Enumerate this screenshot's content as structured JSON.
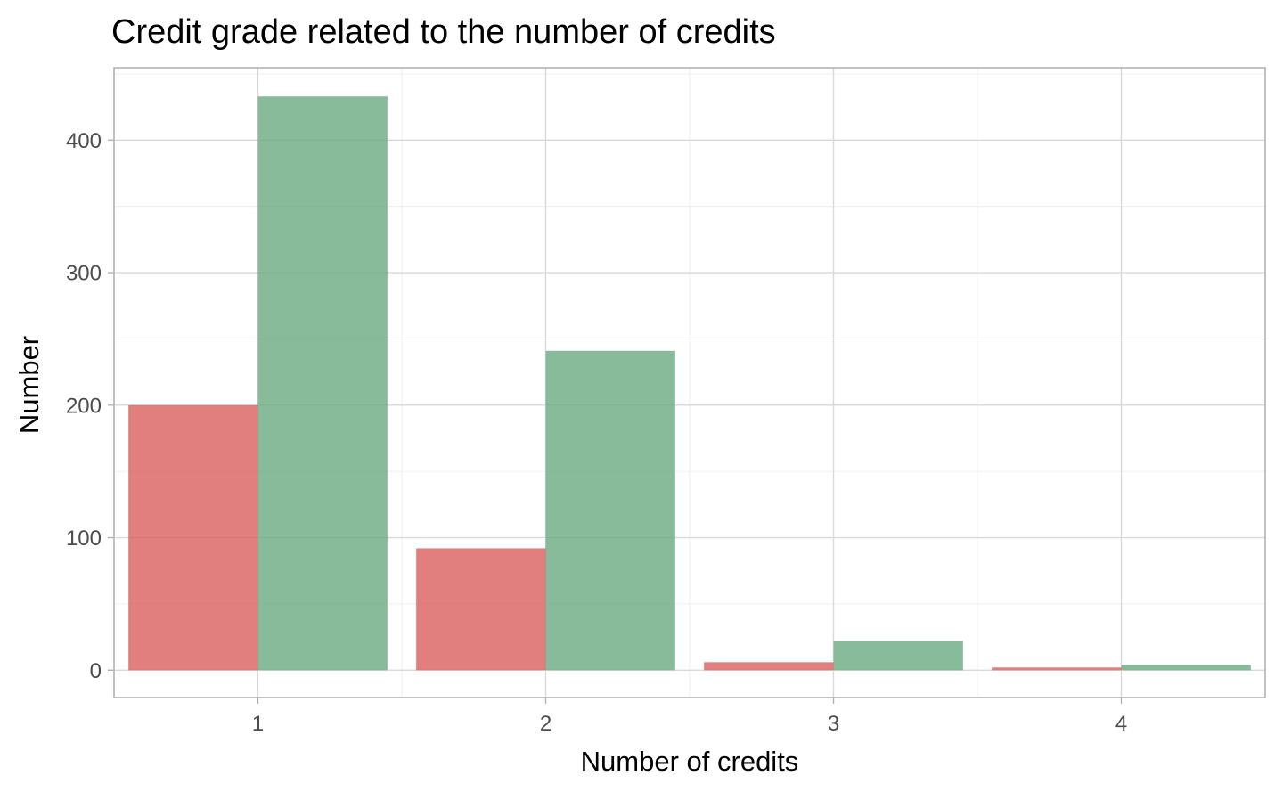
{
  "chart_data": {
    "type": "bar",
    "title": "Credit grade related to the number of credits",
    "xlabel": "Number of credits",
    "ylabel": "Number",
    "categories": [
      "1",
      "2",
      "3",
      "4"
    ],
    "series": [
      {
        "color": "#d95f5f",
        "values": [
          200,
          92,
          6,
          2
        ]
      },
      {
        "color": "#6aaa7f",
        "values": [
          433,
          241,
          22,
          4
        ]
      }
    ],
    "yticks": [
      0,
      100,
      200,
      300,
      400
    ],
    "ylim": [
      -20.65,
      454.65
    ],
    "xlim": [
      0.5,
      4.5
    ],
    "legend": "none",
    "grid": true
  }
}
